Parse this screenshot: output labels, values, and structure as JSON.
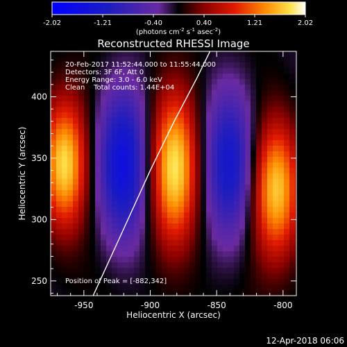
{
  "colorbar": {
    "ticks": [
      "-2.02",
      "-1.21",
      "-0.40",
      "0.40",
      "1.21",
      "2.02"
    ],
    "unit_label": "(photons cm",
    "unit_sup1": "-2",
    "unit_mid": " s",
    "unit_sup2": "-1",
    "unit_mid2": " asec",
    "unit_sup3": "-2",
    "unit_end": ")"
  },
  "annotations": {
    "time_range": "20-Feb-2017 11:52:44.000 to 11:55:44.000",
    "detectors": "Detectors: 3F 6F, Att 0",
    "energy": "Energy Range: 3.0 - 6.0 keV",
    "clean": "Clean    Total counts: 1.44E+04",
    "peak": "Position of Peak = [-882,342]"
  },
  "footer": {
    "date": "12-Apr-2018 06:06"
  },
  "chart_data": {
    "type": "heatmap",
    "title": "Reconstructed RHESSI Image",
    "xlabel": "Heliocentric X (arcsec)",
    "ylabel": "Heliocentric Y (arcsec)",
    "xlim": [
      -975,
      -790
    ],
    "ylim": [
      238,
      437
    ],
    "xticks": [
      -950,
      -900,
      -850,
      -800
    ],
    "yticks": [
      250,
      300,
      350,
      400
    ],
    "xtick_labels": [
      "-950",
      "-900",
      "-850",
      "-800"
    ],
    "ytick_labels": [
      "250",
      "300",
      "350",
      "400"
    ],
    "colorbar_range": [
      -2.02,
      2.02
    ],
    "peak": [
      -882,
      342
    ],
    "lobes": [
      {
        "x": -965,
        "y": 345,
        "amplitude": 1.9,
        "sx": 12,
        "sy": 38
      },
      {
        "x": -921,
        "y": 345,
        "amplitude": -1.7,
        "sx": 14,
        "sy": 45
      },
      {
        "x": -882,
        "y": 342,
        "amplitude": 2.02,
        "sx": 13,
        "sy": 45
      },
      {
        "x": -840,
        "y": 345,
        "amplitude": -1.5,
        "sx": 14,
        "sy": 45
      },
      {
        "x": -805,
        "y": 325,
        "amplitude": 1.8,
        "sx": 13,
        "sy": 40
      }
    ],
    "limb_curve": {
      "x": [
        -943,
        -921,
        -900,
        -882,
        -865,
        -855
      ],
      "y": [
        238,
        290,
        340,
        380,
        415,
        437
      ]
    }
  }
}
